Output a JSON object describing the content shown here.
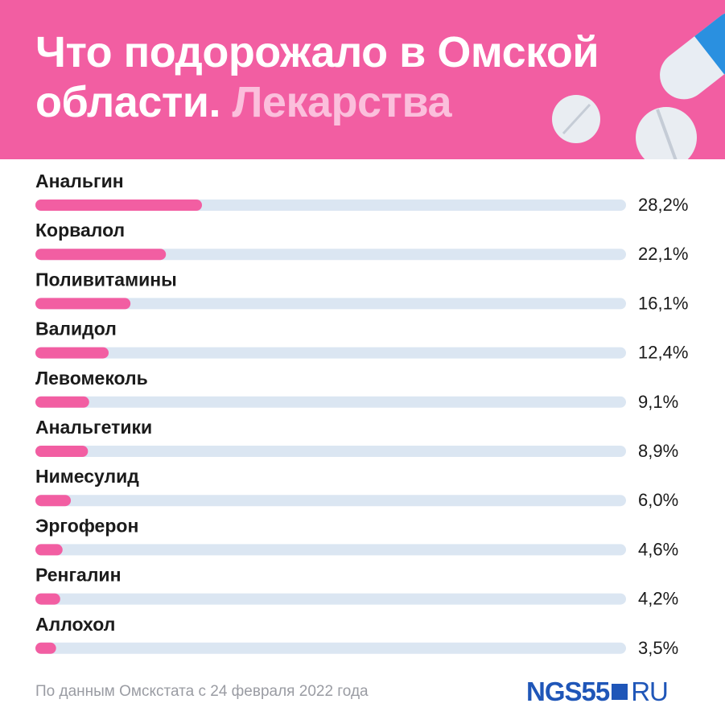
{
  "header": {
    "title_main": "Что подорожало в Омской области.",
    "title_accent": "Лекарства"
  },
  "colors": {
    "header_bg": "#f25ea2",
    "bar_fill": "#f25ea2",
    "bar_track": "#dbe6f2",
    "accent_text": "#fbbfdc",
    "logo": "#1f56b8"
  },
  "chart_data": {
    "type": "bar",
    "orientation": "horizontal",
    "categories": [
      "Анальгин",
      "Корвалол",
      "Поливитамины",
      "Валидол",
      "Левомеколь",
      "Анальгетики",
      "Нимесулид",
      "Эргоферон",
      "Ренгалин",
      "Аллохол"
    ],
    "values": [
      28.2,
      22.1,
      16.1,
      12.4,
      9.1,
      8.9,
      6.0,
      4.6,
      4.2,
      3.5
    ],
    "value_labels": [
      "28,2%",
      "22,1%",
      "16,1%",
      "12,4%",
      "9,1%",
      "8,9%",
      "6,0%",
      "4,6%",
      "4,2%",
      "3,5%"
    ],
    "xlim": [
      0,
      100
    ],
    "grid": false,
    "legend": "none"
  },
  "footer": {
    "source": "По данным Омскстата с 24 февраля 2022 года",
    "logo_brand": "NGS55",
    "logo_tld": "RU"
  }
}
